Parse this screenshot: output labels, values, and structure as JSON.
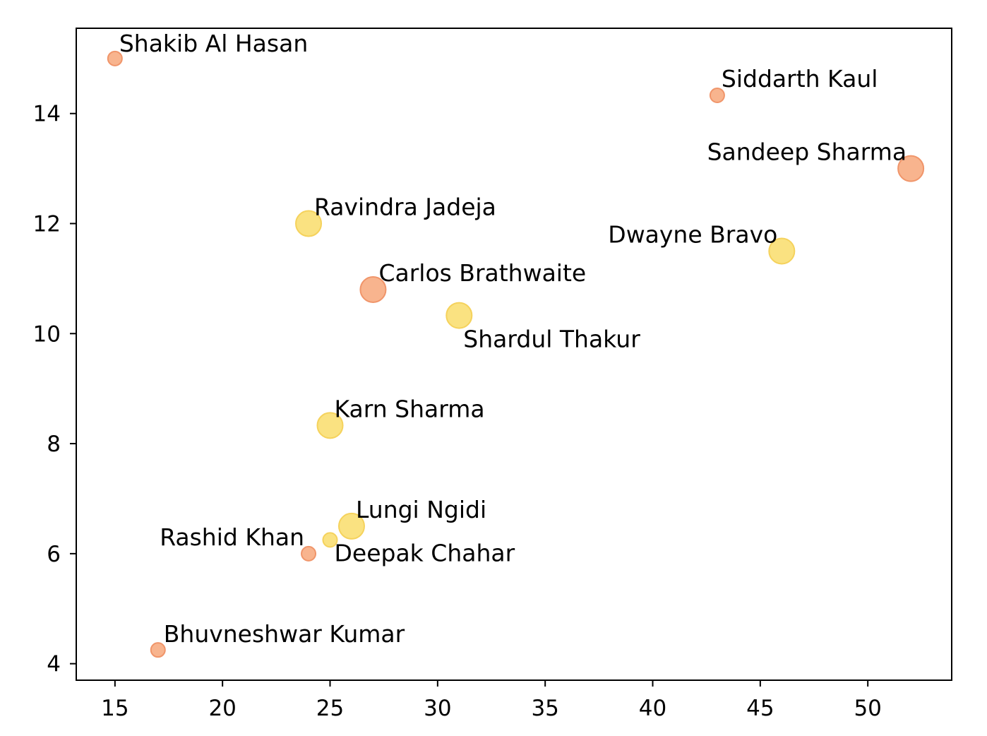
{
  "chart_data": {
    "type": "scatter",
    "title": "",
    "xlabel": "",
    "ylabel": "",
    "xlim": [
      13.2,
      53.9
    ],
    "ylim": [
      3.7,
      15.55
    ],
    "xticks": [
      15,
      20,
      25,
      30,
      35,
      40,
      45,
      50
    ],
    "yticks": [
      4,
      6,
      8,
      10,
      12,
      14
    ],
    "grid": false,
    "colors": {
      "orange": "#f7a77a",
      "yellow": "#f9dd6b"
    },
    "points": [
      {
        "label": "Shakib Al Hasan",
        "x": 15,
        "y": 15.0,
        "size": 1,
        "color": "orange"
      },
      {
        "label": "Siddarth Kaul",
        "x": 43,
        "y": 14.33,
        "size": 1,
        "color": "orange"
      },
      {
        "label": "Sandeep Sharma",
        "x": 52,
        "y": 13.0,
        "size": 3,
        "color": "orange"
      },
      {
        "label": "Ravindra Jadeja",
        "x": 24,
        "y": 12.0,
        "size": 3,
        "color": "yellow"
      },
      {
        "label": "Dwayne Bravo",
        "x": 46,
        "y": 11.5,
        "size": 3,
        "color": "yellow"
      },
      {
        "label": "Carlos Brathwaite",
        "x": 27,
        "y": 10.8,
        "size": 3,
        "color": "orange"
      },
      {
        "label": "Shardul Thakur",
        "x": 31,
        "y": 10.33,
        "size": 3,
        "color": "yellow"
      },
      {
        "label": "Karn Sharma",
        "x": 25,
        "y": 8.33,
        "size": 3,
        "color": "yellow"
      },
      {
        "label": "Lungi Ngidi",
        "x": 26,
        "y": 6.5,
        "size": 3,
        "color": "yellow"
      },
      {
        "label": "Deepak Chahar",
        "x": 25,
        "y": 6.25,
        "size": 1,
        "color": "yellow"
      },
      {
        "label": "Rashid Khan",
        "x": 24,
        "y": 6.0,
        "size": 1,
        "color": "orange"
      },
      {
        "label": "Bhuvneshwar Kumar",
        "x": 17,
        "y": 4.25,
        "size": 1,
        "color": "orange"
      }
    ]
  }
}
